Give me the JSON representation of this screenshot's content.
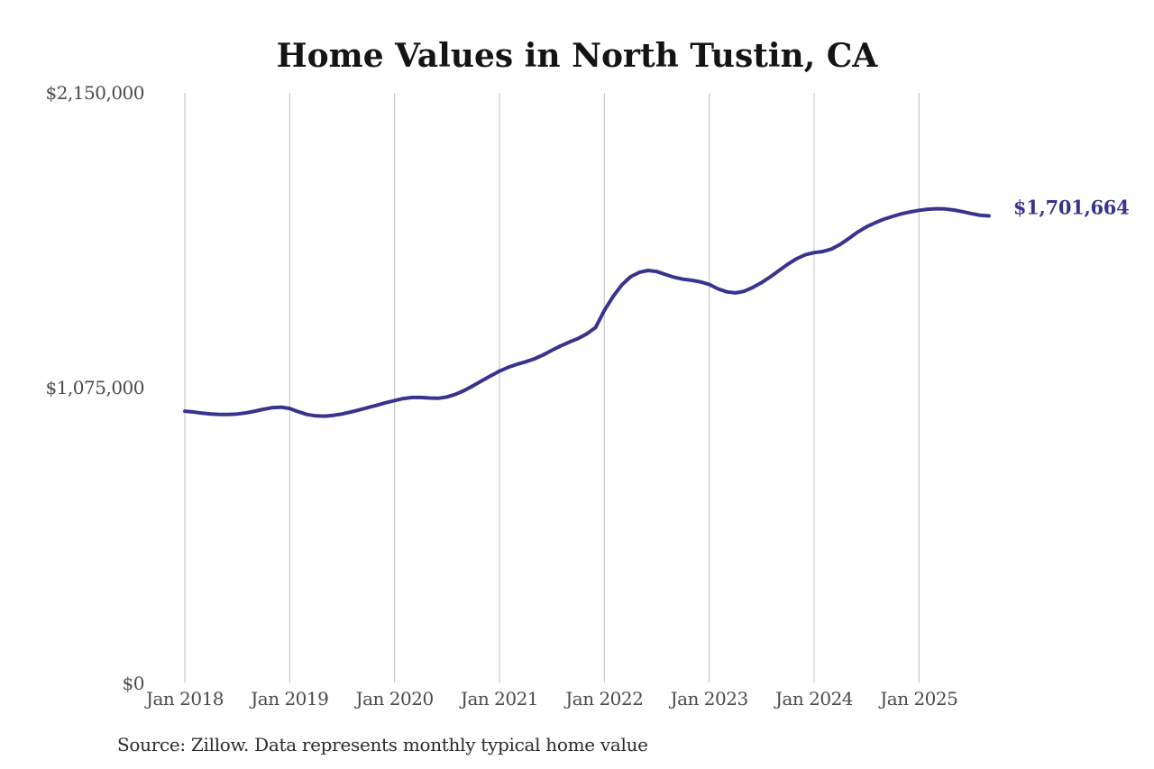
{
  "page": {
    "title": "Home Values in North Tustin, CA",
    "end_label": "$1,701,664",
    "source_note": "Source: Zillow. Data represents monthly typical home value"
  },
  "chart_data": {
    "type": "line",
    "title": "Home Values in North Tustin, CA",
    "xlabel": "",
    "ylabel": "",
    "ylim": [
      0,
      2150000
    ],
    "y_ticks": [
      0,
      1075000,
      2150000
    ],
    "y_tick_labels": [
      "$0",
      "$1,075,000",
      "$2,150,000"
    ],
    "x_tick_labels": [
      "Jan 2018",
      "Jan 2019",
      "Jan 2020",
      "Jan 2021",
      "Jan 2022",
      "Jan 2023",
      "Jan 2024",
      "Jan 2025"
    ],
    "grid": "vertical-only",
    "legend": "none",
    "colors": {
      "line": "#38338d",
      "grid": "#c9c9c9"
    },
    "annotation": {
      "text": "$1,701,664",
      "value": 1701664
    },
    "source": "Source: Zillow. Data represents monthly typical home value",
    "x": [
      "2018-01",
      "2018-02",
      "2018-03",
      "2018-04",
      "2018-05",
      "2018-06",
      "2018-07",
      "2018-08",
      "2018-09",
      "2018-10",
      "2018-11",
      "2018-12",
      "2019-01",
      "2019-02",
      "2019-03",
      "2019-04",
      "2019-05",
      "2019-06",
      "2019-07",
      "2019-08",
      "2019-09",
      "2019-10",
      "2019-11",
      "2019-12",
      "2020-01",
      "2020-02",
      "2020-03",
      "2020-04",
      "2020-05",
      "2020-06",
      "2020-07",
      "2020-08",
      "2020-09",
      "2020-10",
      "2020-11",
      "2020-12",
      "2021-01",
      "2021-02",
      "2021-03",
      "2021-04",
      "2021-05",
      "2021-06",
      "2021-07",
      "2021-08",
      "2021-09",
      "2021-10",
      "2021-11",
      "2021-12",
      "2022-01",
      "2022-02",
      "2022-03",
      "2022-04",
      "2022-05",
      "2022-06",
      "2022-07",
      "2022-08",
      "2022-09",
      "2022-10",
      "2022-11",
      "2022-12",
      "2023-01",
      "2023-02",
      "2023-03",
      "2023-04",
      "2023-05",
      "2023-06",
      "2023-07",
      "2023-08",
      "2023-09",
      "2023-10",
      "2023-11",
      "2023-12",
      "2024-01",
      "2024-02",
      "2024-03",
      "2024-04",
      "2024-05",
      "2024-06",
      "2024-07",
      "2024-08",
      "2024-09",
      "2024-10",
      "2024-11",
      "2024-12",
      "2025-01",
      "2025-02",
      "2025-03",
      "2025-04",
      "2025-05",
      "2025-06",
      "2025-07",
      "2025-08",
      "2025-09"
    ],
    "series": [
      {
        "name": "Monthly typical home value",
        "color": "#38338d",
        "values": [
          990000,
          987000,
          983000,
          980000,
          978000,
          978000,
          980000,
          984000,
          990000,
          997000,
          1003000,
          1005000,
          1000000,
          988000,
          978000,
          973000,
          972000,
          975000,
          980000,
          987000,
          995000,
          1004000,
          1012000,
          1021000,
          1029000,
          1036000,
          1040000,
          1040000,
          1038000,
          1037000,
          1042000,
          1052000,
          1066000,
          1083000,
          1101000,
          1119000,
          1136000,
          1150000,
          1161000,
          1170000,
          1181000,
          1195000,
          1212000,
          1228000,
          1242000,
          1255000,
          1272000,
          1295000,
          1357000,
          1408000,
          1450000,
          1480000,
          1496000,
          1503000,
          1499000,
          1488000,
          1478000,
          1471000,
          1467000,
          1461000,
          1452000,
          1436000,
          1425000,
          1421000,
          1427000,
          1441000,
          1459000,
          1480000,
          1503000,
          1526000,
          1546000,
          1560000,
          1568000,
          1572000,
          1581000,
          1598000,
          1620000,
          1643000,
          1662000,
          1677000,
          1690000,
          1700000,
          1709000,
          1716000,
          1722000,
          1726000,
          1728000,
          1727000,
          1723000,
          1717000,
          1710000,
          1704000,
          1701664
        ]
      }
    ]
  }
}
